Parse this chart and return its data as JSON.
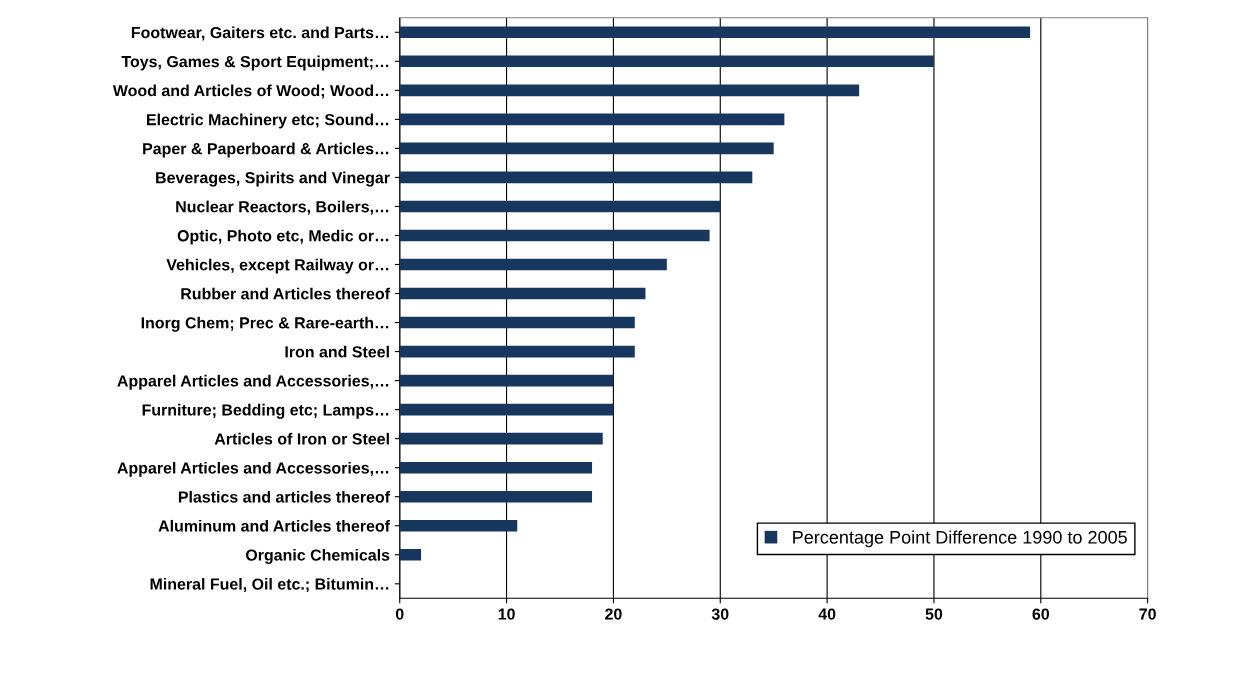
{
  "chart_data": {
    "type": "bar",
    "orientation": "horizontal",
    "categories": [
      "Footwear, Gaiters etc. and Parts…",
      "Toys, Games & Sport Equipment;…",
      "Wood and Articles of Wood; Wood…",
      "Electric Machinery etc; Sound…",
      "Paper & Paperboard & Articles…",
      "Beverages, Spirits and Vinegar",
      "Nuclear Reactors, Boilers,…",
      "Optic, Photo etc, Medic or…",
      "Vehicles, except Railway or…",
      "Rubber and Articles thereof",
      "Inorg Chem; Prec & Rare-earth…",
      "Iron and Steel",
      "Apparel Articles and Accessories,…",
      "Furniture; Bedding etc; Lamps…",
      "Articles of Iron or Steel",
      "Apparel Articles and Accessories,…",
      "Plastics and articles thereof",
      "Aluminum and Articles thereof",
      "Organic Chemicals",
      "Mineral Fuel, Oil etc.; Bitumin…"
    ],
    "series": [
      {
        "name": "Percentage Point Difference 1990 to 2005",
        "color": "#17375e",
        "values": [
          59,
          50,
          43,
          36,
          35,
          33,
          30,
          29,
          25,
          23,
          22,
          22,
          20,
          20,
          19,
          18,
          18,
          11,
          2,
          0
        ]
      }
    ],
    "xlim": [
      0,
      70
    ],
    "xticks": [
      0,
      10,
      20,
      30,
      40,
      50,
      60,
      70
    ],
    "grid": "x",
    "legend": "bottom right"
  }
}
